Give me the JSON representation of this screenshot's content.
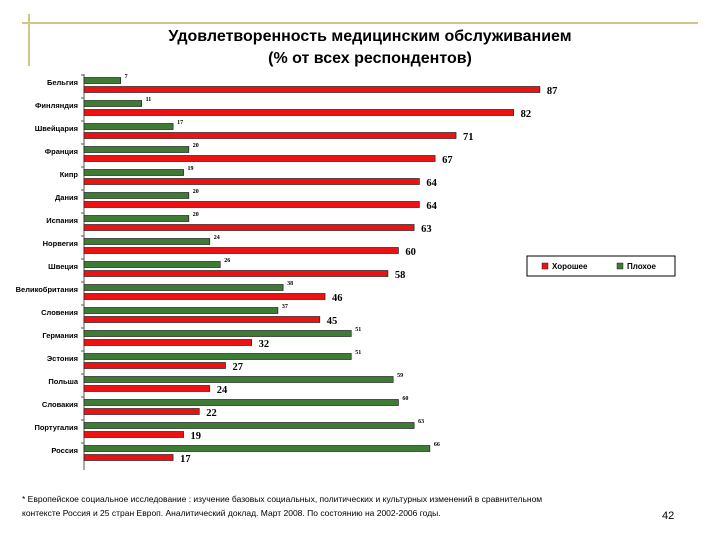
{
  "slide": {
    "title_line1": "Удовлетворенность медицинским обслуживанием",
    "title_line2": "(% от всех респондентов)",
    "footnote_line1": "* Европейское социальное исследование : изучение базовых социальных, политических и культурных изменений в сравнительном",
    "footnote_line2": "контексте Россия и 25 стран Европ. Аналитический доклад. Март 2008. По состоянию на 2002-2006 годы.",
    "page_number": "42"
  },
  "chart_data": {
    "type": "bar",
    "orientation": "horizontal",
    "title": "Удовлетворенность медицинским обслуживанием (% от всех респондентов)",
    "categories": [
      "Бельгия",
      "Финляндия",
      "Швейцария",
      "Франция",
      "Кипр",
      "Дания",
      "Испания",
      "Норвегия",
      "Швеция",
      "Великобритания",
      "Словения",
      "Германия",
      "Эстония",
      "Польша",
      "Словакия",
      "Португалия",
      "Россия"
    ],
    "series": [
      {
        "name": "Хорошее",
        "color": "#ee1111",
        "values": [
          87,
          82,
          71,
          67,
          64,
          64,
          63,
          60,
          58,
          46,
          45,
          32,
          27,
          24,
          22,
          19,
          17
        ]
      },
      {
        "name": "Плохое",
        "color": "#3e7c35",
        "values": [
          7,
          11,
          17,
          20,
          19,
          20,
          20,
          24,
          26,
          38,
          37,
          51,
          51,
          59,
          60,
          63,
          66
        ]
      }
    ],
    "xlim": [
      0,
      100
    ],
    "legend": "right"
  }
}
